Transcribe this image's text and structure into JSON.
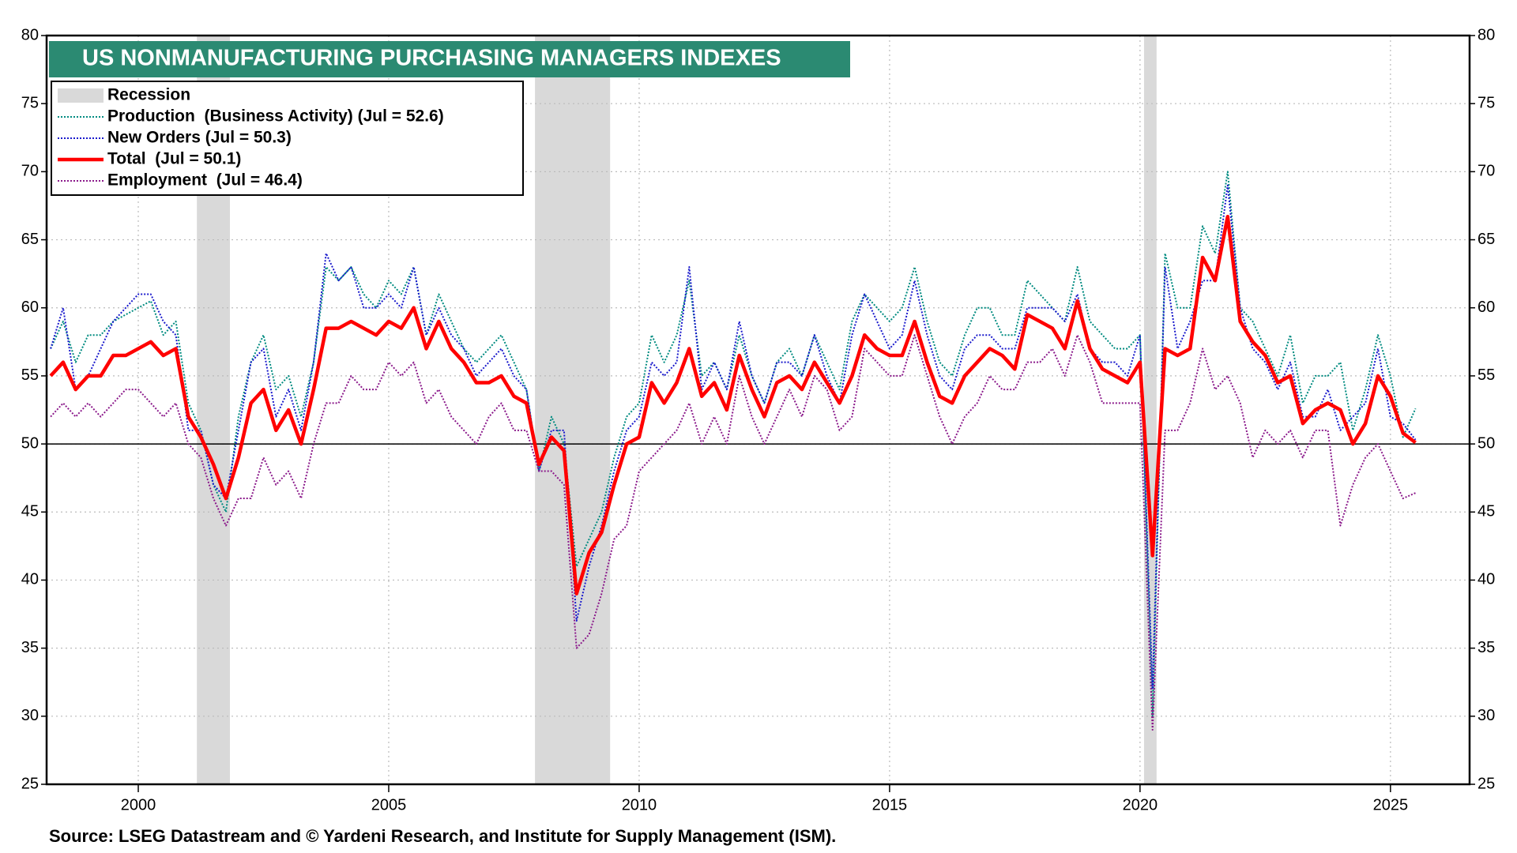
{
  "chart_data": {
    "type": "line",
    "title": "US NONMANUFACTURING PURCHASING MANAGERS INDEXES",
    "source": "Source: LSEG Datastream and © Yardeni Research, and Institute for Supply Management (ISM).",
    "recession_label": "Recession",
    "recession_color": "#d9d9d9",
    "recessions": [
      [
        2001.17,
        2001.83
      ],
      [
        2007.92,
        2009.42
      ],
      [
        2020.08,
        2020.33
      ]
    ],
    "reference_line": 50,
    "xlim": [
      1998.17,
      2026.58
    ],
    "xticks": [
      2000,
      2005,
      2010,
      2015,
      2020,
      2025
    ],
    "ylim": [
      25,
      80
    ],
    "yticks": [
      25,
      30,
      35,
      40,
      45,
      50,
      55,
      60,
      65,
      70,
      75,
      80
    ],
    "grid": true,
    "legend": "upper left",
    "x": [
      1998.25,
      1998.5,
      1998.75,
      1999,
      1999.25,
      1999.5,
      1999.75,
      2000,
      2000.25,
      2000.5,
      2000.75,
      2001,
      2001.25,
      2001.5,
      2001.75,
      2002,
      2002.25,
      2002.5,
      2002.75,
      2003,
      2003.25,
      2003.5,
      2003.75,
      2004,
      2004.25,
      2004.5,
      2004.75,
      2005,
      2005.25,
      2005.5,
      2005.75,
      2006,
      2006.25,
      2006.5,
      2006.75,
      2007,
      2007.25,
      2007.5,
      2007.75,
      2008,
      2008.25,
      2008.5,
      2008.75,
      2009,
      2009.25,
      2009.5,
      2009.75,
      2010,
      2010.25,
      2010.5,
      2010.75,
      2011,
      2011.25,
      2011.5,
      2011.75,
      2012,
      2012.25,
      2012.5,
      2012.75,
      2013,
      2013.25,
      2013.5,
      2013.75,
      2014,
      2014.25,
      2014.5,
      2014.75,
      2015,
      2015.25,
      2015.5,
      2015.75,
      2016,
      2016.25,
      2016.5,
      2016.75,
      2017,
      2017.25,
      2017.5,
      2017.75,
      2018,
      2018.25,
      2018.5,
      2018.75,
      2019,
      2019.25,
      2019.5,
      2019.75,
      2020,
      2020.25,
      2020.5,
      2020.75,
      2021,
      2021.25,
      2021.5,
      2021.75,
      2022,
      2022.25,
      2022.5,
      2022.75,
      2023,
      2023.25,
      2023.5,
      2023.75,
      2024,
      2024.25,
      2024.5,
      2024.75,
      2025,
      2025.25,
      2025.5
    ],
    "series": [
      {
        "name": "Production  (Business Activity) (Jul = 52.6)",
        "color": "#008b80",
        "style": "dotted",
        "width": 2,
        "values": [
          57,
          59,
          56,
          58,
          58,
          59,
          59.5,
          60,
          60.5,
          58,
          59,
          53,
          51,
          47,
          45,
          52,
          56,
          58,
          54,
          55,
          52,
          56,
          63,
          62,
          63,
          61,
          60,
          62,
          61,
          63,
          58,
          61,
          59,
          57,
          56,
          57,
          58,
          56,
          54,
          48,
          52,
          50,
          41,
          43,
          45,
          49,
          52,
          53,
          58,
          56,
          58,
          62,
          55,
          56,
          54,
          58,
          55,
          53,
          56,
          57,
          55,
          58,
          56,
          54,
          59,
          61,
          60,
          59,
          60,
          63,
          59,
          56,
          55,
          58,
          60,
          60,
          58,
          58,
          62,
          61,
          60,
          59,
          63,
          59,
          58,
          57,
          57,
          58,
          30,
          64,
          60,
          60,
          66,
          64,
          70,
          60,
          59,
          57,
          55,
          58,
          53,
          55,
          55,
          56,
          51,
          54,
          58,
          55,
          50.5,
          52.6
        ]
      },
      {
        "name": "New Orders (Jul = 50.3)",
        "color": "#1a1acc",
        "style": "dotted",
        "width": 2,
        "values": [
          57,
          60,
          54,
          55,
          57,
          59,
          60,
          61,
          61,
          59,
          58,
          51,
          51,
          47,
          46,
          51,
          56,
          57,
          52,
          54,
          51,
          56,
          64,
          62,
          63,
          60,
          60,
          61,
          60,
          63,
          58,
          60,
          58,
          57,
          55,
          56,
          57,
          55,
          54,
          48,
          51,
          51,
          37,
          41,
          44,
          48,
          51,
          52,
          56,
          55,
          56,
          63,
          54,
          56,
          54,
          59,
          55,
          53,
          56,
          56,
          55,
          58,
          55,
          53,
          58,
          61,
          59,
          57,
          58,
          62,
          58,
          55,
          54,
          57,
          58,
          58,
          57,
          57,
          60,
          60,
          60,
          59,
          61,
          57,
          56,
          56,
          55,
          58,
          32,
          63,
          57,
          59,
          62,
          62,
          69,
          60,
          57,
          56,
          54,
          56,
          52,
          52,
          54,
          51,
          52,
          53,
          57,
          52,
          51.5,
          50.3
        ]
      },
      {
        "name": "Total  (Jul = 50.1)",
        "color": "#ff0000",
        "style": "solid",
        "width": 4.5,
        "values": [
          55,
          56,
          54,
          55,
          55,
          56.5,
          56.5,
          57,
          57.5,
          56.5,
          57,
          52,
          50.5,
          48.5,
          46,
          49,
          53,
          54,
          51,
          52.5,
          50,
          54,
          58.5,
          58.5,
          59,
          58.5,
          58,
          59,
          58.5,
          60,
          57,
          59,
          57,
          56,
          54.5,
          54.5,
          55,
          53.5,
          53,
          48.5,
          50.5,
          49.5,
          39,
          42,
          43.5,
          47,
          50,
          50.5,
          54.5,
          53,
          54.5,
          57,
          53.5,
          54.5,
          52.5,
          56.5,
          54,
          52,
          54.5,
          55,
          54,
          56,
          54.5,
          53,
          55,
          58,
          57,
          56.5,
          56.5,
          59,
          56,
          53.5,
          53,
          55,
          56,
          57,
          56.5,
          55.5,
          59.5,
          59,
          58.5,
          57,
          60.5,
          57,
          55.5,
          55,
          54.5,
          56,
          41.8,
          57,
          56.5,
          57,
          63.7,
          62,
          66.7,
          59,
          57.5,
          56.5,
          54.5,
          55,
          51.5,
          52.5,
          53,
          52.5,
          50,
          51.5,
          55,
          53.5,
          50.8,
          50.1
        ]
      },
      {
        "name": "Employment  (Jul = 46.4)",
        "color": "#8b1a8b",
        "style": "dotted",
        "width": 2,
        "values": [
          52,
          53,
          52,
          53,
          52,
          53,
          54,
          54,
          53,
          52,
          53,
          50,
          49,
          46,
          44,
          46,
          46,
          49,
          47,
          48,
          46,
          50,
          53,
          53,
          55,
          54,
          54,
          56,
          55,
          56,
          53,
          54,
          52,
          51,
          50,
          52,
          53,
          51,
          51,
          48,
          48,
          47,
          35,
          36,
          39,
          43,
          44,
          48,
          49,
          50,
          51,
          53,
          50,
          52,
          50,
          55,
          52,
          50,
          52,
          54,
          52,
          55,
          54,
          51,
          52,
          57,
          56,
          55,
          55,
          58,
          55,
          52,
          50,
          52,
          53,
          55,
          54,
          54,
          56,
          56,
          57,
          55,
          58,
          56,
          53,
          53,
          53,
          53,
          29,
          51,
          51,
          53,
          57,
          54,
          55,
          53,
          49,
          51,
          50,
          51,
          49,
          51,
          51,
          44,
          47,
          49,
          50,
          48,
          46,
          46.4
        ]
      }
    ]
  }
}
